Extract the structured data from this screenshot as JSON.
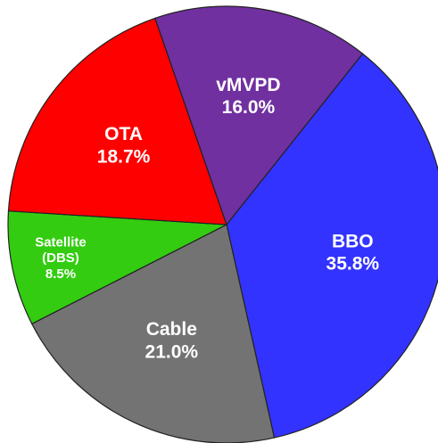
{
  "chart_data": {
    "type": "pie",
    "categories": [
      "BBO",
      "Cable",
      "Satellite (DBS)",
      "OTA",
      "vMVPD"
    ],
    "values": [
      35.8,
      21.0,
      8.5,
      18.7,
      16.0
    ],
    "value_labels": [
      "35.8%",
      "21.0%",
      "8.5%",
      "18.7%",
      "16.0%"
    ],
    "colors": [
      "#3333ff",
      "#737373",
      "#33cc11",
      "#ff0000",
      "#7030a0"
    ]
  }
}
